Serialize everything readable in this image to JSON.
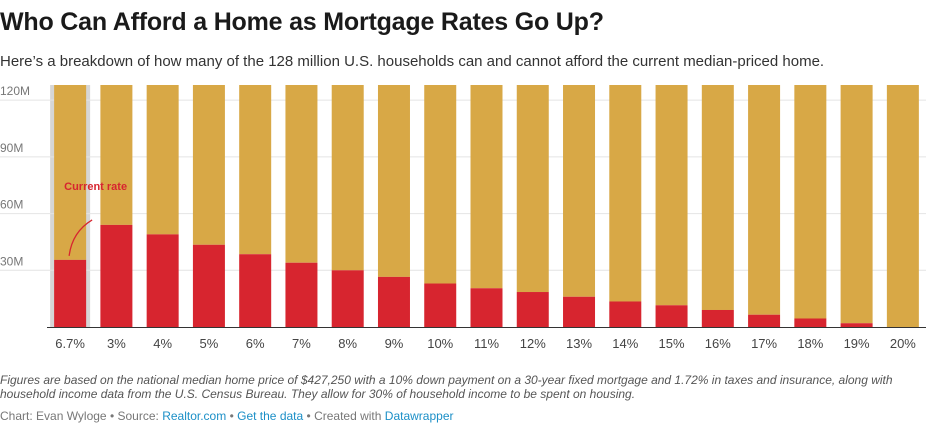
{
  "header": {
    "title": "Who Can Afford a Home as Mortgage Rates Go Up?",
    "subtitle": "Here’s a breakdown of how many of the 128 million U.S. households can and cannot afford the current median-priced home."
  },
  "footer": {
    "notes": "Figures are based on the national median home price of $427,250 with a 10% down payment on a 30-year fixed mortgage and 1.72% in taxes and insurance, along with household income data from the U.S. Census Bureau. They allow for 30% of household income to be spent on housing.",
    "chart_label": "Chart: Evan Wyloge",
    "source_label": "Source:",
    "source_link": "Realtor.com",
    "get_data_link": "Get the data",
    "created_label": "Created with",
    "created_link": "Datawrapper",
    "separator": "•"
  },
  "colors": {
    "can_afford": "#d7252f",
    "cannot_afford": "#d8a846",
    "highlight_band": "#d6d6d6",
    "grid": "#e4e4e4",
    "link": "#1b8fc7"
  },
  "chart_data": {
    "type": "bar",
    "stacked": true,
    "categories": [
      "6.7%",
      "3%",
      "4%",
      "5%",
      "6%",
      "7%",
      "8%",
      "9%",
      "10%",
      "11%",
      "12%",
      "13%",
      "14%",
      "15%",
      "16%",
      "17%",
      "18%",
      "19%",
      "20%"
    ],
    "series": [
      {
        "values": [
          35.5,
          54,
          49,
          43.5,
          38.5,
          34,
          30,
          26.5,
          23,
          20.5,
          18.5,
          16,
          13.5,
          11.5,
          9,
          6.5,
          4.5,
          2,
          0
        ]
      },
      {
        "values": [
          92.5,
          74,
          79,
          84.5,
          89.5,
          94,
          98,
          101.5,
          105,
          107.5,
          109.5,
          112,
          114.5,
          116.5,
          119,
          121.5,
          123.5,
          126,
          128
        ]
      }
    ],
    "ylim": [
      0,
      128
    ],
    "yticks": [
      30,
      60,
      90,
      120
    ],
    "ytick_labels": [
      "30M",
      "60M",
      "90M",
      "120M"
    ],
    "grid": true,
    "highlighted_category": "6.7%",
    "annotation": {
      "text": "Current rate",
      "category": "6.7%"
    }
  }
}
